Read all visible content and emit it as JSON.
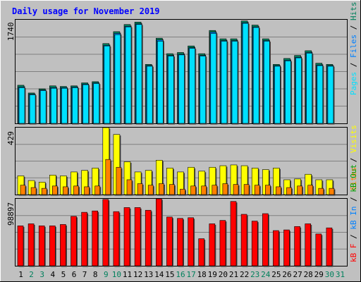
{
  "title": "Daily usage for November 2019",
  "colors": {
    "background": "#C0C0C0",
    "title": "#0000FF",
    "gridline": "#808080",
    "pages": "#00E0FF",
    "files": "#0080FF",
    "hits": "#00805C",
    "visits": "#FFFF00",
    "sites": "#FF8000",
    "kbin": "#0080FF",
    "kbout": "#00A000",
    "kbf": "#FF0000"
  },
  "panels": {
    "top": {
      "max_label": "1740",
      "legend": [
        "Pages",
        "Files",
        "Hits"
      ]
    },
    "middle": {
      "max_label": "429",
      "legend": [
        "Visits",
        "Sites"
      ]
    },
    "bottom": {
      "max_label": "98897",
      "legend": [
        "kB F",
        "kB In",
        "kB Out"
      ]
    }
  },
  "chart_data": [
    {
      "type": "bar",
      "title": "Daily usage for November 2019",
      "panel": "hits-files-pages",
      "categories": [
        "1",
        "2",
        "3",
        "4",
        "5",
        "6",
        "7",
        "8",
        "9",
        "10",
        "11",
        "12",
        "13",
        "14",
        "15",
        "16",
        "17",
        "18",
        "19",
        "20",
        "21",
        "22",
        "23",
        "24",
        "25",
        "26",
        "27",
        "28",
        "29",
        "30",
        "31"
      ],
      "ylim": [
        0,
        1740
      ],
      "series": [
        {
          "name": "Hits",
          "values": [
            640,
            510,
            580,
            630,
            620,
            630,
            680,
            700,
            1340,
            1540,
            1660,
            1700,
            990,
            1430,
            1170,
            1190,
            1300,
            1170,
            1560,
            1420,
            1420,
            1720,
            1650,
            1420,
            990,
            1090,
            1140,
            1220,
            1010,
            990,
            null
          ]
        },
        {
          "name": "Files",
          "values": [
            610,
            490,
            560,
            600,
            600,
            610,
            660,
            680,
            1310,
            1510,
            1630,
            1670,
            970,
            1400,
            1140,
            1160,
            1270,
            1140,
            1530,
            1390,
            1390,
            1690,
            1620,
            1390,
            970,
            1060,
            1110,
            1190,
            980,
            970,
            null
          ]
        },
        {
          "name": "Pages",
          "values": [
            600,
            480,
            550,
            590,
            590,
            600,
            650,
            670,
            1300,
            1490,
            1620,
            1660,
            960,
            1380,
            1130,
            1150,
            1260,
            1130,
            1510,
            1380,
            1380,
            1680,
            1610,
            1380,
            960,
            1050,
            1100,
            1180,
            970,
            960,
            null
          ]
        }
      ]
    },
    {
      "type": "bar",
      "panel": "sites-visits",
      "categories": [
        "1",
        "2",
        "3",
        "4",
        "5",
        "6",
        "7",
        "8",
        "9",
        "10",
        "11",
        "12",
        "13",
        "14",
        "15",
        "16",
        "17",
        "18",
        "19",
        "20",
        "21",
        "22",
        "23",
        "24",
        "25",
        "26",
        "27",
        "28",
        "29",
        "30",
        "31"
      ],
      "ylim": [
        0,
        429
      ],
      "series": [
        {
          "name": "Visits",
          "values": [
            120,
            90,
            80,
            125,
            120,
            145,
            155,
            170,
            429,
            385,
            210,
            145,
            155,
            220,
            170,
            145,
            175,
            150,
            175,
            185,
            190,
            185,
            170,
            160,
            170,
            95,
            100,
            130,
            95,
            95,
            null
          ]
        },
        {
          "name": "Sites",
          "values": [
            60,
            45,
            40,
            55,
            50,
            55,
            50,
            55,
            225,
            175,
            95,
            70,
            60,
            70,
            65,
            35,
            55,
            55,
            60,
            70,
            65,
            65,
            60,
            60,
            50,
            45,
            55,
            60,
            40,
            40,
            null
          ]
        }
      ]
    },
    {
      "type": "bar",
      "panel": "kbytes",
      "categories": [
        "1",
        "2",
        "3",
        "4",
        "5",
        "6",
        "7",
        "8",
        "9",
        "10",
        "11",
        "12",
        "13",
        "14",
        "15",
        "16",
        "17",
        "18",
        "19",
        "20",
        "21",
        "22",
        "23",
        "24",
        "25",
        "26",
        "27",
        "28",
        "29",
        "30",
        "31"
      ],
      "ylim": [
        0,
        98897
      ],
      "series": [
        {
          "name": "kB F",
          "values": [
            59000,
            62000,
            59000,
            59000,
            61000,
            73000,
            79000,
            81000,
            98000,
            80000,
            86000,
            86000,
            82000,
            98897,
            72000,
            70000,
            71000,
            40000,
            62000,
            67000,
            95000,
            76000,
            66000,
            77000,
            52000,
            53000,
            58000,
            62000,
            47000,
            56000,
            null
          ]
        }
      ]
    }
  ],
  "x_labels": [
    "1",
    "2",
    "3",
    "4",
    "5",
    "6",
    "7",
    "8",
    "9",
    "10",
    "11",
    "12",
    "13",
    "14",
    "15",
    "16",
    "17",
    "18",
    "19",
    "20",
    "21",
    "22",
    "23",
    "24",
    "25",
    "26",
    "27",
    "28",
    "29",
    "30",
    "31"
  ],
  "weekend_days": [
    2,
    3,
    9,
    10,
    16,
    17,
    23,
    24,
    30,
    31
  ]
}
